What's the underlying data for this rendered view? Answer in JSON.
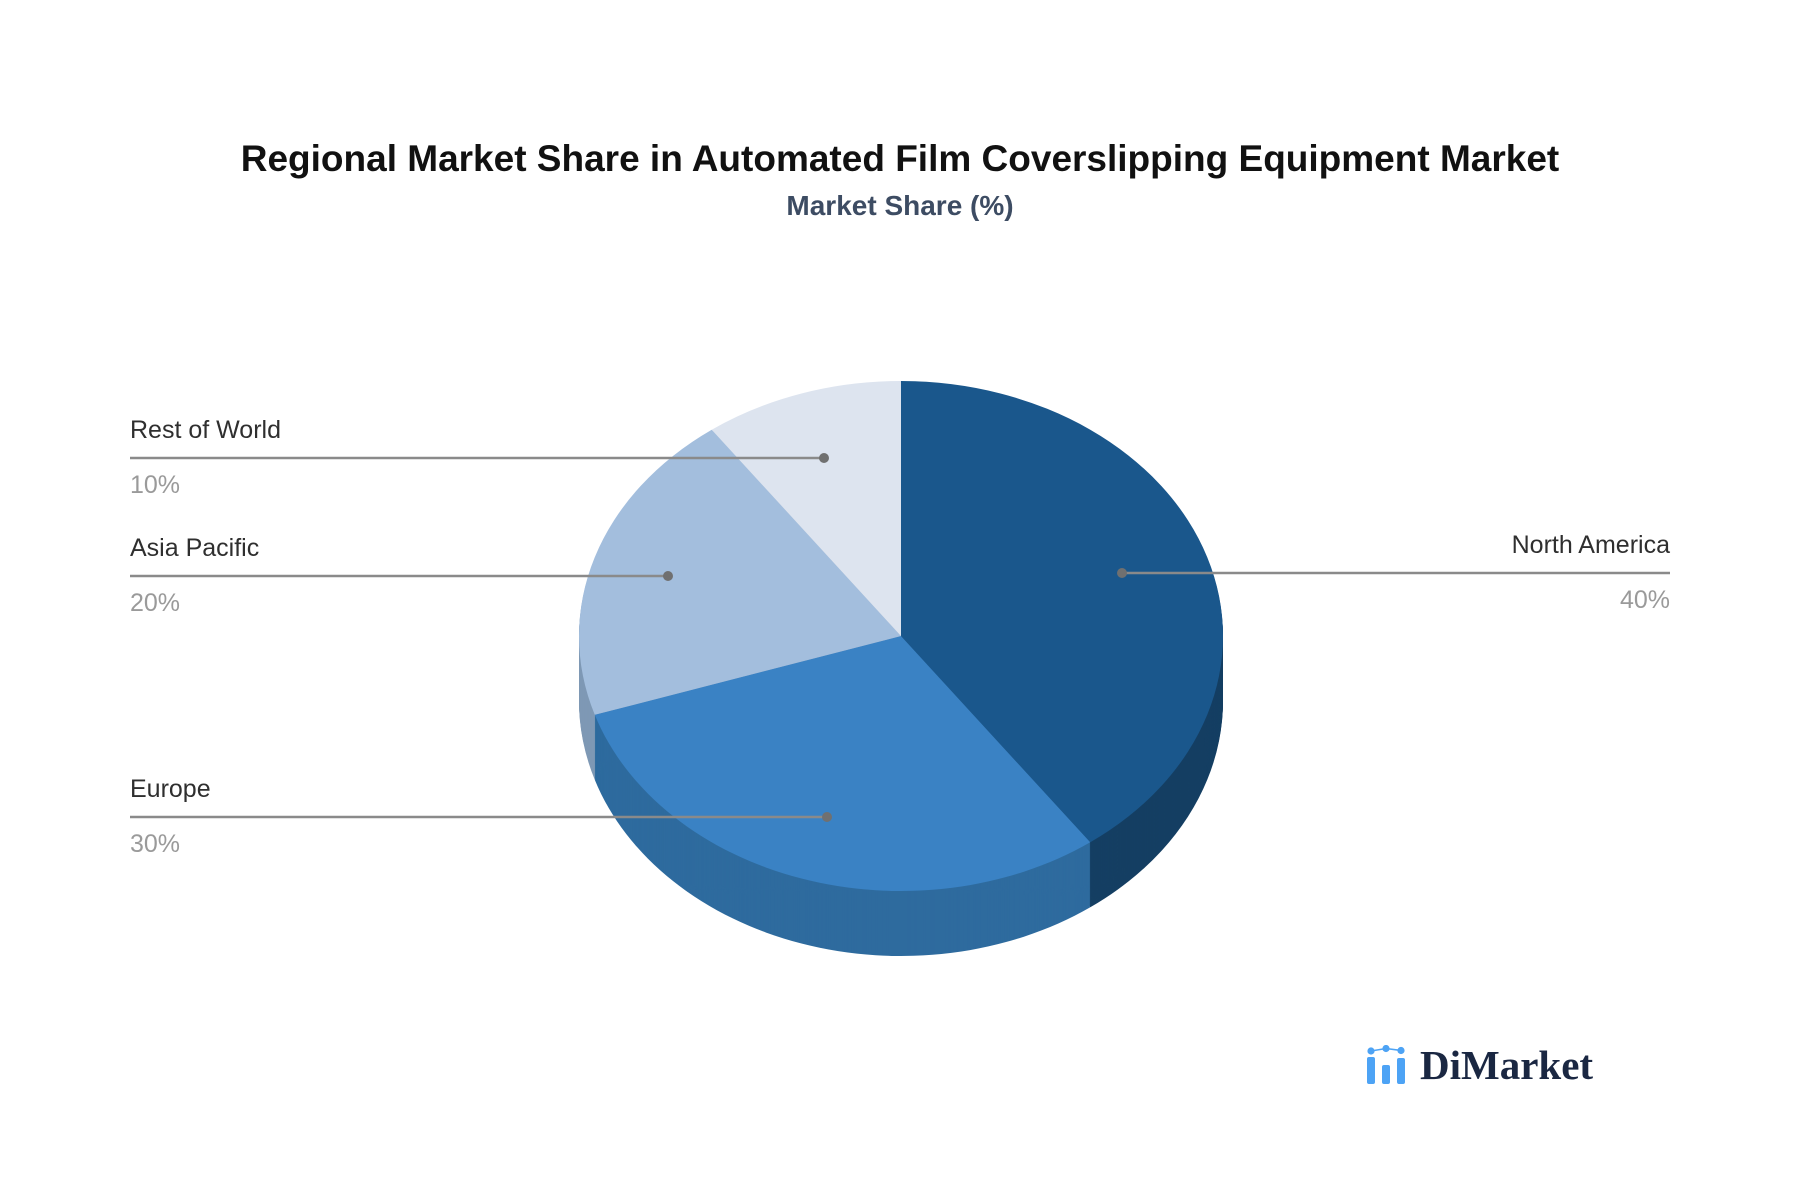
{
  "title": "Regional Market Share in Automated Film Coverslipping Equipment Market",
  "subtitle": "Market Share (%)",
  "chart_data": {
    "type": "pie",
    "style": "3d-pie",
    "unit": "%",
    "start_angle_deg": 0,
    "direction": "clockwise",
    "legend_position": "callout-labels",
    "slices": [
      {
        "label": "North America",
        "value": 40,
        "color": "#1a578c",
        "side_color": "#153f63"
      },
      {
        "label": "Europe",
        "value": 30,
        "color": "#3a82c4",
        "side_color": "#2e6b9e"
      },
      {
        "label": "Asia Pacific",
        "value": 20,
        "color": "#a3bedd",
        "side_color": "#7f99b5"
      },
      {
        "label": "Rest of World",
        "value": 10,
        "color": "#dde4ef",
        "side_color": "#b9c4d6"
      }
    ]
  },
  "colors": {
    "background": "#ffffff",
    "title": "#111111",
    "subtitle": "#3d4c63",
    "label_text": "#2f2f2f",
    "value_text": "#9a9a9a",
    "leader_line": "#8a8a8a",
    "leader_dot": "#707070"
  },
  "logo": {
    "text": "DiMarket",
    "icon": "bar-line-chart-icon",
    "icon_color": "#4da3f5",
    "text_color": "#1a2742"
  }
}
